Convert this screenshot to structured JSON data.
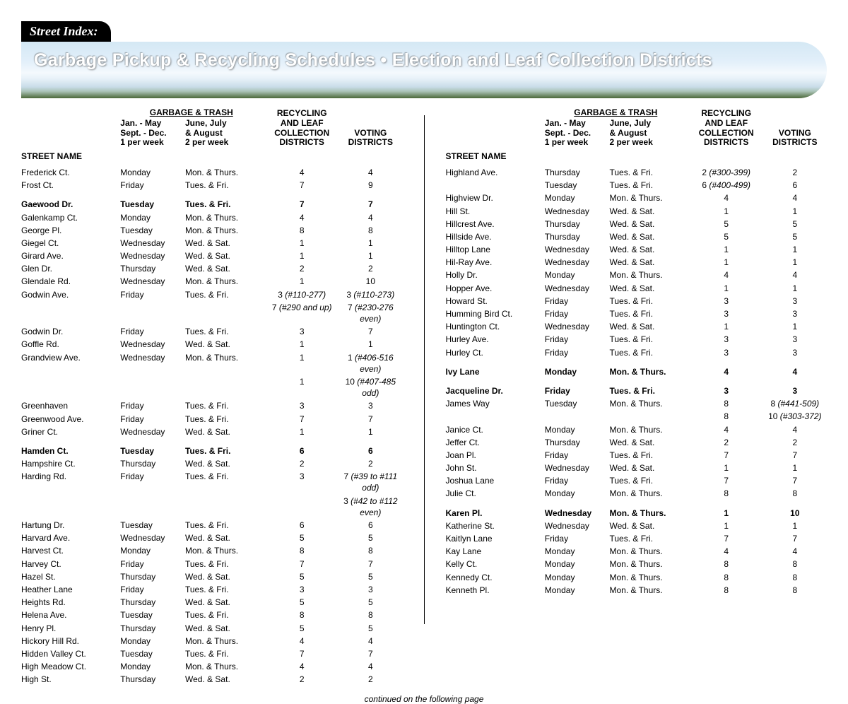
{
  "tab_label": "Street Index:",
  "banner_title": "Garbage Pickup & Recycling Schedules  •  Election and Leaf Collection Districts",
  "footer_text": "continued on the following page",
  "headers": {
    "street": "STREET NAME",
    "garbage_group": "GARBAGE & TRASH",
    "g1_line1": "Jan. - May",
    "g1_line2": "Sept. - Dec.",
    "g1_line3": "1 per week",
    "g2_line1": "June, July",
    "g2_line2": "& August",
    "g2_line3": "2 per week",
    "recyc_l1": "RECYCLING",
    "recyc_l2": "AND LEAF",
    "recyc_l3": "COLLECTION",
    "recyc_l4": "DISTRICTS",
    "vote_l1": "VOTING",
    "vote_l2": "DISTRICTS"
  },
  "col_widths": {
    "street": "26%",
    "g1": "17%",
    "g2": "21%",
    "recyc": "20%",
    "vote": "16%"
  },
  "left_rows": [
    {
      "s": "Frederick Ct.",
      "g1": "Monday",
      "g2": "Mon. & Thurs.",
      "r": "4",
      "v": "4"
    },
    {
      "s": "Frost Ct.",
      "g1": "Friday",
      "g2": "Tues. & Fri.",
      "r": "7",
      "v": "9"
    },
    {
      "s": "Gaewood Dr.",
      "g1": "Tuesday",
      "g2": "Tues. & Fri.",
      "r": "7",
      "v": "7",
      "bold": true,
      "space": true
    },
    {
      "s": "Galenkamp Ct.",
      "g1": "Monday",
      "g2": "Mon. & Thurs.",
      "r": "4",
      "v": "4"
    },
    {
      "s": "George Pl.",
      "g1": "Tuesday",
      "g2": "Mon. & Thurs.",
      "r": "8",
      "v": "8"
    },
    {
      "s": "Giegel Ct.",
      "g1": "Wednesday",
      "g2": "Wed. & Sat.",
      "r": "1",
      "v": "1"
    },
    {
      "s": "Girard Ave.",
      "g1": "Wednesday",
      "g2": "Wed. & Sat.",
      "r": "1",
      "v": "1"
    },
    {
      "s": "Glen Dr.",
      "g1": "Thursday",
      "g2": "Wed. & Sat.",
      "r": "2",
      "v": "2"
    },
    {
      "s": "Glendale Rd.",
      "g1": "Wednesday",
      "g2": "Mon. & Thurs.",
      "r": "1",
      "v": "10"
    },
    {
      "s": "Godwin Ave.",
      "g1": "Friday",
      "g2": "Tues. & Fri.",
      "r": "3 <em>(#110-277)</em>",
      "v": "3 <em>(#110-273)</em>"
    },
    {
      "s": "",
      "g1": "",
      "g2": "",
      "r": "7 <em>(#290 and up)</em>",
      "v": "7 <em>(#230-276 even)</em>"
    },
    {
      "s": "Godwin Dr.",
      "g1": "Friday",
      "g2": "Tues. & Fri.",
      "r": "3",
      "v": "7"
    },
    {
      "s": "Goffle Rd.",
      "g1": "Wednesday",
      "g2": "Wed. & Sat.",
      "r": "1",
      "v": "1"
    },
    {
      "s": "Grandview Ave.",
      "g1": "Wednesday",
      "g2": "Mon. & Thurs.",
      "r": "1",
      "v": "1 <em>(#406-516 even)</em>"
    },
    {
      "s": "",
      "g1": "",
      "g2": "",
      "r": "1",
      "v": "10 <em>(#407-485 odd)</em>"
    },
    {
      "s": "Greenhaven",
      "g1": "Friday",
      "g2": "Tues. & Fri.",
      "r": "3",
      "v": "3"
    },
    {
      "s": "Greenwood Ave.",
      "g1": "Friday",
      "g2": "Tues. & Fri.",
      "r": "7",
      "v": "7"
    },
    {
      "s": "Griner Ct.",
      "g1": "Wednesday",
      "g2": "Wed. & Sat.",
      "r": "1",
      "v": "1"
    },
    {
      "s": "Hamden Ct.",
      "g1": "Tuesday",
      "g2": "Tues. & Fri.",
      "r": "6",
      "v": "6",
      "bold": true,
      "space": true
    },
    {
      "s": "Hampshire Ct.",
      "g1": "Thursday",
      "g2": "Wed. & Sat.",
      "r": "2",
      "v": "2"
    },
    {
      "s": "Harding Rd.",
      "g1": "Friday",
      "g2": "Tues. & Fri.",
      "r": "3",
      "v": "7 <em>(#39 to #111 odd)</em>"
    },
    {
      "s": "",
      "g1": "",
      "g2": "",
      "r": "",
      "v": "3 <em>(#42 to #112 even)</em>"
    },
    {
      "s": "Hartung Dr.",
      "g1": "Tuesday",
      "g2": "Tues. & Fri.",
      "r": "6",
      "v": "6"
    },
    {
      "s": "Harvard Ave.",
      "g1": "Wednesday",
      "g2": "Wed. & Sat.",
      "r": "5",
      "v": "5"
    },
    {
      "s": "Harvest Ct.",
      "g1": "Monday",
      "g2": "Mon. & Thurs.",
      "r": "8",
      "v": "8"
    },
    {
      "s": "Harvey Ct.",
      "g1": "Friday",
      "g2": "Tues. & Fri.",
      "r": "7",
      "v": "7"
    },
    {
      "s": "Hazel St.",
      "g1": "Thursday",
      "g2": "Wed. & Sat.",
      "r": "5",
      "v": "5"
    },
    {
      "s": "Heather Lane",
      "g1": "Friday",
      "g2": "Tues. & Fri.",
      "r": "3",
      "v": "3"
    },
    {
      "s": "Heights Rd.",
      "g1": "Thursday",
      "g2": "Wed. & Sat.",
      "r": "5",
      "v": "5"
    },
    {
      "s": "Helena Ave.",
      "g1": "Tuesday",
      "g2": "Tues. & Fri.",
      "r": "8",
      "v": "8"
    },
    {
      "s": "Henry Pl.",
      "g1": "Thursday",
      "g2": "Wed. & Sat.",
      "r": "5",
      "v": "5"
    },
    {
      "s": "Hickory Hill Rd.",
      "g1": "Monday",
      "g2": "Mon. & Thurs.",
      "r": "4",
      "v": "4"
    },
    {
      "s": "Hidden Valley Ct.",
      "g1": "Tuesday",
      "g2": "Tues. & Fri.",
      "r": "7",
      "v": "7"
    },
    {
      "s": "High Meadow Ct.",
      "g1": "Monday",
      "g2": "Mon. & Thurs.",
      "r": "4",
      "v": "4"
    },
    {
      "s": "High St.",
      "g1": "Thursday",
      "g2": "Wed. & Sat.",
      "r": "2",
      "v": "2"
    }
  ],
  "right_rows": [
    {
      "s": "Highland Ave.",
      "g1": "Thursday",
      "g2": "Tues. & Fri.",
      "r": "2 <em>(#300-399)</em>",
      "v": "2"
    },
    {
      "s": "",
      "g1": "Tuesday",
      "g2": "Tues. & Fri.",
      "r": "6 <em>(#400-499)</em>",
      "v": "6"
    },
    {
      "s": "Highview Dr.",
      "g1": "Monday",
      "g2": "Mon. & Thurs.",
      "r": "4",
      "v": "4"
    },
    {
      "s": "Hill St.",
      "g1": "Wednesday",
      "g2": "Wed. & Sat.",
      "r": "1",
      "v": "1"
    },
    {
      "s": "Hillcrest Ave.",
      "g1": "Thursday",
      "g2": "Wed. & Sat.",
      "r": "5",
      "v": "5"
    },
    {
      "s": "Hillside Ave.",
      "g1": "Thursday",
      "g2": "Wed. & Sat.",
      "r": "5",
      "v": "5"
    },
    {
      "s": "Hilltop Lane",
      "g1": "Wednesday",
      "g2": "Wed. & Sat.",
      "r": "1",
      "v": "1"
    },
    {
      "s": "Hil-Ray Ave.",
      "g1": "Wednesday",
      "g2": "Wed. & Sat.",
      "r": "1",
      "v": "1"
    },
    {
      "s": "Holly Dr.",
      "g1": "Monday",
      "g2": "Mon. & Thurs.",
      "r": "4",
      "v": "4"
    },
    {
      "s": "Hopper Ave.",
      "g1": "Wednesday",
      "g2": "Wed. & Sat.",
      "r": "1",
      "v": "1"
    },
    {
      "s": "Howard St.",
      "g1": "Friday",
      "g2": "Tues. & Fri.",
      "r": "3",
      "v": "3"
    },
    {
      "s": "Humming Bird Ct.",
      "g1": "Friday",
      "g2": "Tues. & Fri.",
      "r": "3",
      "v": "3"
    },
    {
      "s": "Huntington Ct.",
      "g1": "Wednesday",
      "g2": "Wed. & Sat.",
      "r": "1",
      "v": "1"
    },
    {
      "s": "Hurley Ave.",
      "g1": "Friday",
      "g2": "Tues. & Fri.",
      "r": "3",
      "v": "3"
    },
    {
      "s": "Hurley Ct.",
      "g1": "Friday",
      "g2": "Tues. & Fri.",
      "r": "3",
      "v": "3"
    },
    {
      "s": "Ivy Lane",
      "g1": "Monday",
      "g2": "Mon. & Thurs.",
      "r": "4",
      "v": "4",
      "bold": true,
      "space": true
    },
    {
      "s": "Jacqueline Dr.",
      "g1": "Friday",
      "g2": "Tues. & Fri.",
      "r": "3",
      "v": "3",
      "bold": true,
      "space": true
    },
    {
      "s": "James Way",
      "g1": "Tuesday",
      "g2": "Mon. & Thurs.",
      "r": "8",
      "v": "8 <em>(#441-509)</em>"
    },
    {
      "s": "",
      "g1": "",
      "g2": "",
      "r": "8",
      "v": "10 <em>(#303-372)</em>"
    },
    {
      "s": "Janice Ct.",
      "g1": "Monday",
      "g2": "Mon. & Thurs.",
      "r": "4",
      "v": "4"
    },
    {
      "s": "Jeffer Ct.",
      "g1": "Thursday",
      "g2": "Wed. & Sat.",
      "r": "2",
      "v": "2"
    },
    {
      "s": "Joan Pl.",
      "g1": "Friday",
      "g2": "Tues. & Fri.",
      "r": "7",
      "v": "7"
    },
    {
      "s": "John St.",
      "g1": "Wednesday",
      "g2": "Wed. & Sat.",
      "r": "1",
      "v": "1"
    },
    {
      "s": "Joshua Lane",
      "g1": "Friday",
      "g2": "Tues. & Fri.",
      "r": "7",
      "v": "7"
    },
    {
      "s": "Julie Ct.",
      "g1": "Monday",
      "g2": "Mon. & Thurs.",
      "r": "8",
      "v": "8"
    },
    {
      "s": "Karen Pl.",
      "g1": "Wednesday",
      "g2": "Mon. & Thurs.",
      "r": "1",
      "v": "10",
      "bold": true,
      "space": true
    },
    {
      "s": "Katherine St.",
      "g1": "Wednesday",
      "g2": "Wed. & Sat.",
      "r": "1",
      "v": "1"
    },
    {
      "s": "Kaitlyn Lane",
      "g1": "Friday",
      "g2": "Tues. & Fri.",
      "r": "7",
      "v": "7"
    },
    {
      "s": "Kay Lane",
      "g1": "Monday",
      "g2": "Mon. & Thurs.",
      "r": "4",
      "v": "4"
    },
    {
      "s": "Kelly Ct.",
      "g1": "Monday",
      "g2": "Mon. & Thurs.",
      "r": "8",
      "v": "8"
    },
    {
      "s": "Kennedy Ct.",
      "g1": "Monday",
      "g2": "Mon. & Thurs.",
      "r": "8",
      "v": "8"
    },
    {
      "s": "Kenneth Pl.",
      "g1": "Monday",
      "g2": "Mon. & Thurs.",
      "r": "8",
      "v": "8"
    }
  ]
}
